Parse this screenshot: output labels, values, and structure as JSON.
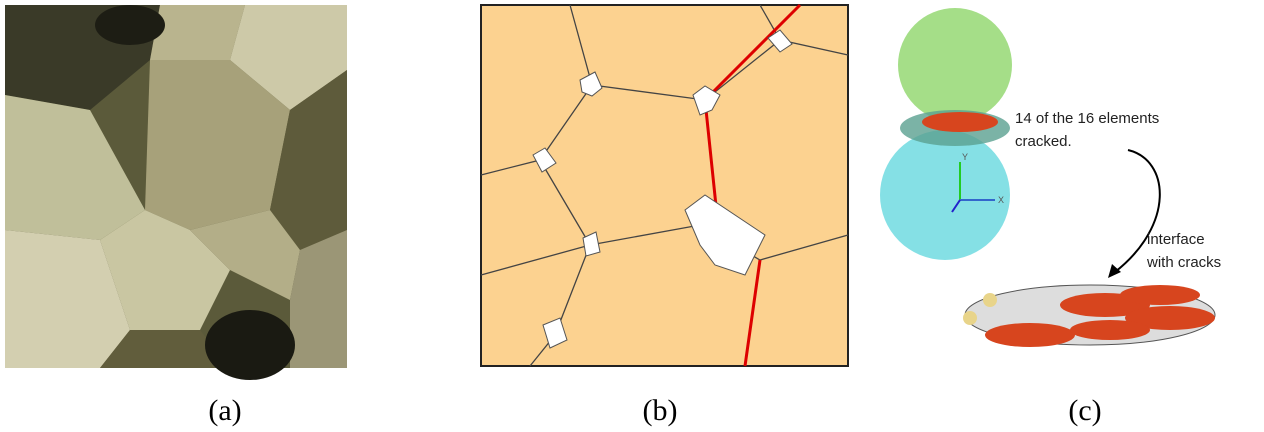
{
  "panels": [
    {
      "caption": "(a)"
    },
    {
      "caption": "(b)"
    },
    {
      "caption": "(c)",
      "annotations": [
        {
          "lines": [
            "14 of the 16 elements",
            "cracked."
          ]
        },
        {
          "lines": [
            "interface",
            "with cracks"
          ]
        }
      ],
      "axes": {
        "y": "Y",
        "x": "X"
      }
    }
  ]
}
